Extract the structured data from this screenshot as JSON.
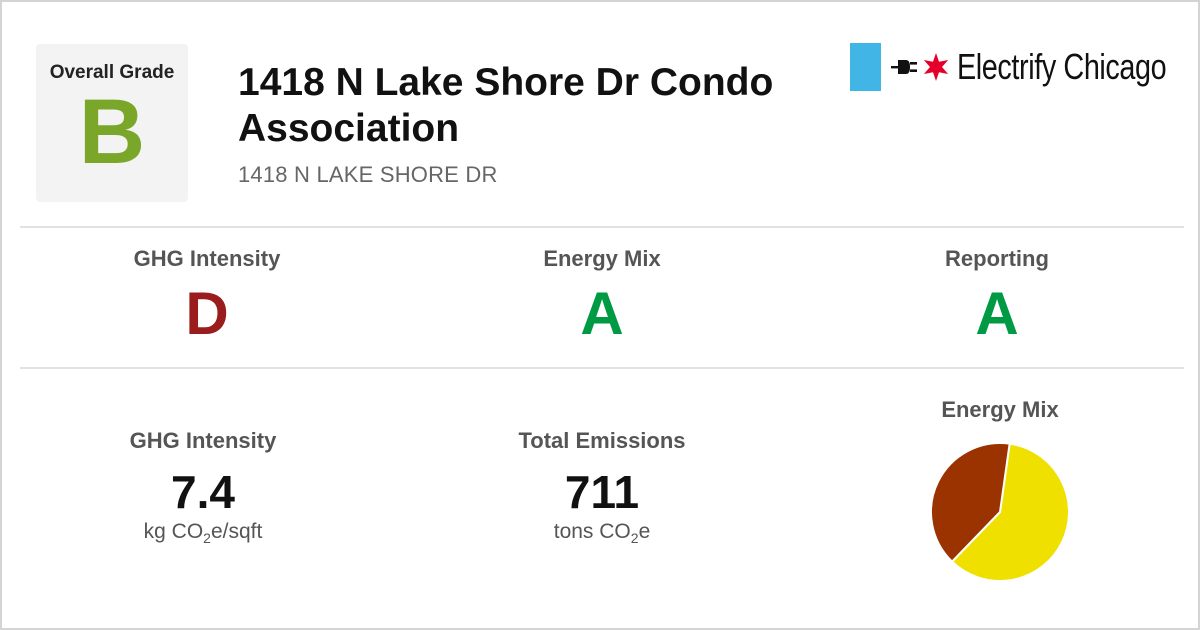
{
  "overall": {
    "label": "Overall Grade",
    "grade": "B",
    "grade_color": "#7aa62a"
  },
  "building": {
    "name": "1418 N Lake Shore Dr Condo Association",
    "address": "1418 N LAKE SHORE DR"
  },
  "logo": {
    "name": "Electrify Chicago",
    "bar_color": "#41b6e6",
    "star_color": "#e4002b",
    "icons": [
      "plug-icon",
      "chicago-star-icon"
    ]
  },
  "grades": [
    {
      "label": "GHG Intensity",
      "grade": "D",
      "color": "#9b1c1c"
    },
    {
      "label": "Energy Mix",
      "grade": "A",
      "color": "#009a44"
    },
    {
      "label": "Reporting",
      "grade": "A",
      "color": "#009a44"
    }
  ],
  "stats": [
    {
      "label": "GHG Intensity",
      "value": "7.4",
      "unit_prefix": "kg CO",
      "unit_sub": "2",
      "unit_suffix": "e/sqft"
    },
    {
      "label": "Total Emissions",
      "value": "711",
      "unit_prefix": "tons CO",
      "unit_sub": "2",
      "unit_suffix": "e"
    }
  ],
  "chart_data": {
    "type": "pie",
    "title": "Energy Mix",
    "slices": [
      {
        "value": 0.6,
        "color": "#f0e000"
      },
      {
        "value": 0.4,
        "color": "#9b3300"
      }
    ]
  }
}
